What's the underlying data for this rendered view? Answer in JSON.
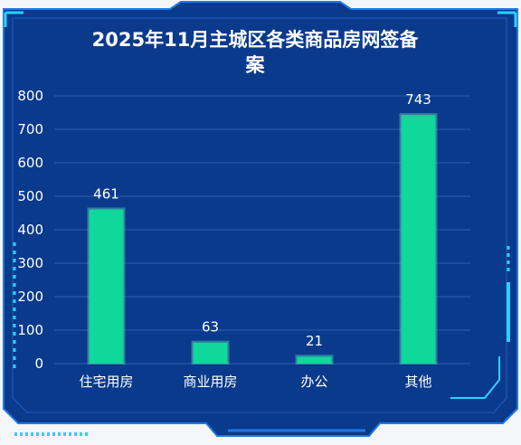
{
  "chart_data": {
    "type": "bar",
    "title_lines": [
      "2025年11月主城区各类商品房网签备",
      "案"
    ],
    "categories": [
      "住宅用房",
      "商业用房",
      "办公",
      "其他"
    ],
    "values": [
      461,
      63,
      21,
      743
    ],
    "data_labels": [
      "461",
      "63",
      "21",
      "743"
    ],
    "y_ticks": [
      "0",
      "100",
      "200",
      "300",
      "400",
      "500",
      "600",
      "700",
      "800"
    ],
    "ylim": [
      0,
      800
    ],
    "grid": true,
    "legend": "none"
  },
  "colors": {
    "panel_bg": "#0a3a8c",
    "panel_border": "#1e78e6",
    "bar_fill": "#10d89a",
    "grid": "#2c5fb0",
    "accent": "#2cd0ff"
  }
}
